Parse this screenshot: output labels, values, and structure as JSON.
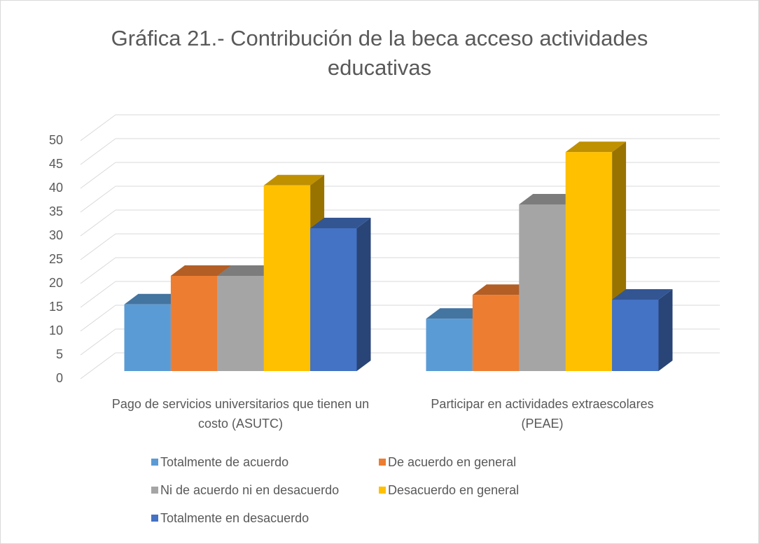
{
  "chart_data": {
    "type": "bar3d",
    "title": "Gráfica 21.- Contribución de la beca acceso actividades educativas",
    "categories": [
      "Pago de servicios universitarios que tienen un costo (ASUTC)",
      "Participar en actividades extraescolares (PEAE)"
    ],
    "series": [
      {
        "name": "Totalmente de acuerdo",
        "color": "#5b9bd5",
        "values": [
          14,
          11
        ]
      },
      {
        "name": "De acuerdo en general",
        "color": "#ed7d31",
        "values": [
          20,
          16
        ]
      },
      {
        "name": "Ni de acuerdo ni en desacuerdo",
        "color": "#a5a5a5",
        "values": [
          20,
          35
        ]
      },
      {
        "name": "Desacuerdo en general",
        "color": "#ffc000",
        "values": [
          39,
          46
        ]
      },
      {
        "name": "Totalmente en desacuerdo",
        "color": "#4472c4",
        "values": [
          30,
          15
        ]
      }
    ],
    "ylim": [
      0,
      50
    ],
    "yticks": [
      0,
      5,
      10,
      15,
      20,
      25,
      30,
      35,
      40,
      45,
      50
    ],
    "grid": true,
    "legend": "bottom"
  }
}
